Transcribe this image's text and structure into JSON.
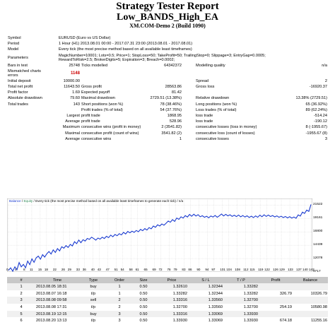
{
  "report": {
    "title": "Strategy Tester Report",
    "ea_name": "Low_BANDS_High_EA",
    "server": "XM.COM-Demo 2 (Build 1090)"
  },
  "info": {
    "symbol_label": "Symbol",
    "symbol": "EURUSD (Euro vs US Dollar)",
    "period_label": "Period",
    "period": "1 Hour (H1) 2013.08.01 00:00 - 2017.07.31 23:00 (2013.08.01 - 2017.08.01)",
    "model_label": "Model",
    "model": "Every tick (the most precise method based on all available least timeframes)",
    "params_label": "Parameters",
    "params_line1": "MagicNumber=10001; Lots=0.5; Price=1; StopLoss=50; TakeProfit=50; TrailingStop=0; Slippage=3; EntryGap=0.0005;",
    "params_line2": "RewardToRisk=2.5; BrokerDigits=5; Expiration=3; Breach=0.0002;",
    "bars_label": "Bars in test",
    "bars": "25748",
    "ticks_label": "Ticks modelled",
    "ticks": "64342372",
    "quality_label": "Modelling quality",
    "quality": "n/a",
    "mismatch_label1": "Mismatched charts",
    "mismatch_label2": "errors",
    "mismatch": "1148"
  },
  "stats": {
    "initial_deposit_label": "Initial deposit",
    "initial_deposit": "10000.00",
    "spread_label": "Spread",
    "spread": "2",
    "total_net_profit_label": "Total net profit",
    "total_net_profit": "11643.50",
    "gross_profit_label": "Gross profit",
    "gross_profit": "28563.86",
    "gross_loss_label": "Gross loss",
    "gross_loss": "-16920.37",
    "profit_factor_label": "Profit factor",
    "profit_factor": "1.69",
    "expected_payoff_label": "Expected payoff",
    "expected_payoff": "81.42",
    "abs_dd_label": "Absolute drawdown",
    "abs_dd": "79.60",
    "max_dd_label": "Maximal drawdown",
    "max_dd": "2729.51 (13.38%)",
    "rel_dd_label": "Relative drawdown",
    "rel_dd": "13.38% (2729.51)",
    "total_trades_label": "Total trades",
    "total_trades": "143",
    "short_label": "Short positions (won %)",
    "short": "78 (38.46%)",
    "long_label": "Long positions (won %)",
    "long": "65 (36.92%)",
    "profit_trades_label": "Profit trades (% of total)",
    "profit_trades": "54 (37.76%)",
    "loss_trades_label": "Loss trades (% of total)",
    "loss_trades": "89 (62.24%)",
    "largest_label": "Largest",
    "largest_profit_label": "profit trade",
    "largest_profit": "1868.95",
    "largest_loss_label": "loss trade",
    "largest_loss": "-514.24",
    "average_label": "Average",
    "average_profit_label": "profit trade",
    "average_profit": "528.96",
    "average_loss_label": "loss trade",
    "average_loss": "-190.12",
    "maximum_label": "Maximum",
    "max_cons_wins_label": "consecutive wins (profit in money)",
    "max_cons_wins": "2 (3541.82)",
    "max_cons_losses_label": "consecutive losses (loss in money)",
    "max_cons_losses": "8 (-1955.67)",
    "maximal_label": "Maximal",
    "max_cons_profit_label": "consecutive profit (count of wins)",
    "max_cons_profit": "3541.82 (2)",
    "max_cons_loss_label": "consecutive loss (count of losses)",
    "max_cons_loss": "-1955.67 (8)",
    "avg_cons_label": "Average",
    "avg_cons_wins_label": "consecutive wins",
    "avg_cons_wins": "1",
    "avg_cons_losses_label": "consecutive losses",
    "avg_cons_losses": "3"
  },
  "chart_data": {
    "type": "line",
    "header_balance": "Balance",
    "header_sep": " / ",
    "header_equity": "Equity",
    "header_rest": " / Every tick (the most precise method based on all available least timeframes to generate each tick) / n/a",
    "y_ticks": [
      "21522",
      "19161",
      "16800",
      "14439",
      "12078",
      "9717"
    ],
    "x_ticks": [
      "0",
      "4",
      "8",
      "11",
      "15",
      "18",
      "22",
      "26",
      "29",
      "33",
      "36",
      "40",
      "43",
      "47",
      "51",
      "54",
      "58",
      "61",
      "65",
      "69",
      "72",
      "76",
      "79",
      "83",
      "86",
      "90",
      "94",
      "97",
      "101",
      "104",
      "108",
      "112",
      "115",
      "119",
      "122",
      "126",
      "129",
      "133",
      "137",
      "140",
      "143"
    ],
    "ylim": [
      9717,
      22700
    ],
    "xlim": [
      0,
      143
    ],
    "series": [
      {
        "values": [
          10000,
          10450,
          9850,
          10620,
          10120,
          11380,
          10620,
          11050,
          10450,
          11640,
          11010,
          12030,
          11420,
          12210,
          12520,
          11970,
          12780,
          12350,
          12940,
          13330,
          12880,
          13620,
          13160,
          13840,
          13440,
          14180,
          13920,
          14380,
          14050,
          14580,
          14320,
          15060,
          14720,
          15350,
          14890,
          15420,
          15180,
          15640,
          15480,
          15860,
          15620,
          15340,
          15710,
          15520,
          15860,
          15630,
          16020,
          15780,
          16230,
          15940,
          16340,
          16120,
          16480,
          16260,
          16720,
          16430,
          16880,
          16640,
          16920,
          16720,
          17050,
          16820,
          17240,
          17010,
          17380,
          17120,
          17560,
          17340,
          17830,
          17610,
          18050,
          17840,
          18200,
          17980,
          18330,
          18720,
          18510,
          18970,
          18650,
          19250,
          19010,
          19460,
          19240,
          19670,
          19420,
          19880,
          19560,
          19920,
          19600,
          19840,
          19470,
          19650,
          19380,
          19560,
          19290,
          19610,
          19420,
          19700,
          19380,
          19650,
          19960,
          19620,
          19900,
          19630,
          19820,
          19540,
          19750,
          19500,
          19780,
          19460,
          19690,
          19420,
          19640,
          19350,
          19580,
          19330,
          19620,
          19380,
          19760,
          19480,
          19820,
          19530,
          19770,
          19510,
          19690,
          19440,
          19630,
          19380,
          19570,
          19330,
          19520,
          19270,
          19480,
          19240,
          19430,
          19210,
          19800,
          19590,
          20300,
          20060,
          20650,
          20420,
          21643
        ]
      }
    ]
  },
  "orders": {
    "headers": [
      "#",
      "Time",
      "Type",
      "Order",
      "Size",
      "Price",
      "S / L",
      "T / P",
      "Profit",
      "Balance"
    ],
    "rows": [
      [
        "1",
        "2013.08.05 18:31",
        "buy",
        "1",
        "0.50",
        "1.32610",
        "1.32344",
        "1.33282",
        "",
        ""
      ],
      [
        "2",
        "2013.08.07 16:18",
        "t/p",
        "1",
        "0.50",
        "1.33282",
        "1.32344",
        "1.33282",
        "326.79",
        "10326.79"
      ],
      [
        "3",
        "2013.08.08 09:58",
        "sell",
        "2",
        "0.50",
        "1.33316",
        "1.33560",
        "1.32700",
        "",
        ""
      ],
      [
        "4",
        "2013.08.08 17:31",
        "t/p",
        "2",
        "0.50",
        "1.32700",
        "1.33560",
        "1.32700",
        "254.19",
        "10580.98"
      ],
      [
        "5",
        "2013.08.19 12:15",
        "buy",
        "3",
        "0.50",
        "1.33316",
        "1.33069",
        "1.33930",
        "",
        ""
      ],
      [
        "6",
        "2013.08.20 13:13",
        "t/p",
        "3",
        "0.50",
        "1.33930",
        "1.33069",
        "1.33930",
        "674.18",
        "11255.16"
      ]
    ]
  }
}
